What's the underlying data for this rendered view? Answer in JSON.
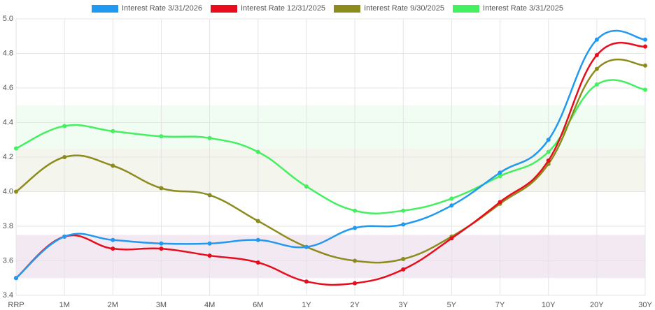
{
  "chart_data": {
    "type": "line",
    "categories": [
      "RRP",
      "1M",
      "2M",
      "3M",
      "4M",
      "6M",
      "1Y",
      "2Y",
      "3Y",
      "5Y",
      "7Y",
      "10Y",
      "20Y",
      "30Y"
    ],
    "series": [
      {
        "name": "Interest Rate 3/31/2026",
        "color": "#2299f0",
        "values": [
          3.5,
          3.74,
          3.72,
          3.7,
          3.7,
          3.72,
          3.68,
          3.79,
          3.81,
          3.92,
          4.11,
          4.3,
          4.88,
          4.88
        ]
      },
      {
        "name": "Interest Rate 12/31/2025",
        "color": "#e80c1c",
        "values": [
          3.5,
          3.74,
          3.67,
          3.67,
          3.63,
          3.59,
          3.48,
          3.47,
          3.55,
          3.73,
          3.94,
          4.18,
          4.79,
          4.84
        ]
      },
      {
        "name": "Interest Rate 9/30/2025",
        "color": "#8c8c1e",
        "values": [
          4.0,
          4.2,
          4.15,
          4.02,
          3.98,
          3.83,
          3.68,
          3.6,
          3.61,
          3.74,
          3.93,
          4.16,
          4.71,
          4.73
        ]
      },
      {
        "name": "Interest Rate 3/31/2025",
        "color": "#44f060",
        "values": [
          4.25,
          4.38,
          4.35,
          4.32,
          4.31,
          4.23,
          4.03,
          3.89,
          3.89,
          3.96,
          4.09,
          4.23,
          4.62,
          4.59
        ]
      }
    ],
    "bands": [
      {
        "from": 4.25,
        "to": 4.5,
        "color": "#f1fcf3"
      },
      {
        "from": 4.0,
        "to": 4.25,
        "color": "#f4f5ec"
      },
      {
        "from": 3.5,
        "to": 3.75,
        "color": "#f3e9f3"
      }
    ],
    "ylim": [
      3.4,
      5.0
    ],
    "yticks": [
      3.4,
      3.6,
      3.8,
      {
        "value": 4,
        "label": "4.0"
      },
      4.2,
      4.4,
      4.6,
      4.8,
      {
        "value": 5,
        "label": "5.0"
      }
    ],
    "grid": true
  }
}
